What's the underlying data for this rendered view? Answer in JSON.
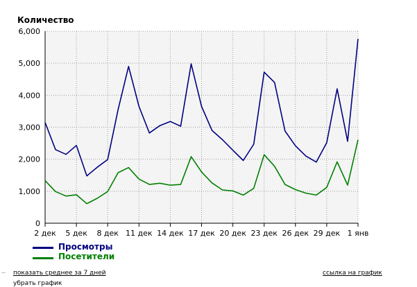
{
  "chart_data": {
    "type": "line",
    "title": "Количество",
    "ylim": [
      0,
      6000
    ],
    "yticks": [
      "0",
      "1,000",
      "2,000",
      "3,000",
      "4,000",
      "5,000",
      "6,000"
    ],
    "ytick_values": [
      0,
      1000,
      2000,
      3000,
      4000,
      5000,
      6000
    ],
    "x_labels": [
      "2 дек",
      "5 дек",
      "8 дек",
      "11 дек",
      "14 дек",
      "17 дек",
      "20 дек",
      "23 дек",
      "26 дек",
      "29 дек",
      "1 янв"
    ],
    "x_label_indices": [
      0,
      3,
      6,
      9,
      12,
      15,
      18,
      21,
      24,
      27,
      30
    ],
    "grid": true,
    "legend_position": "bottom-left",
    "series": [
      {
        "name": "Просмотры",
        "color": "#000080",
        "values": [
          3150,
          2300,
          2150,
          2430,
          1480,
          1750,
          1990,
          3550,
          4900,
          3650,
          2820,
          3050,
          3180,
          3030,
          4980,
          3650,
          2900,
          2610,
          2280,
          1960,
          2470,
          4720,
          4400,
          2880,
          2420,
          2100,
          1910,
          2520,
          4200,
          2560,
          5760
        ]
      },
      {
        "name": "Посетители",
        "color": "#008000",
        "values": [
          1330,
          990,
          850,
          890,
          610,
          780,
          990,
          1580,
          1740,
          1380,
          1210,
          1250,
          1190,
          1210,
          2080,
          1600,
          1260,
          1040,
          1010,
          880,
          1090,
          2140,
          1780,
          1210,
          1050,
          940,
          880,
          1120,
          1920,
          1190,
          2610
        ]
      }
    ]
  },
  "links": {
    "average": "показать среднее за 7 дней",
    "remove": "убрать график",
    "link": "ссылка на график"
  },
  "colors": {
    "plot_bg": "#f4f4f4",
    "grid": "#a0a0a0",
    "axis": "#000000"
  }
}
